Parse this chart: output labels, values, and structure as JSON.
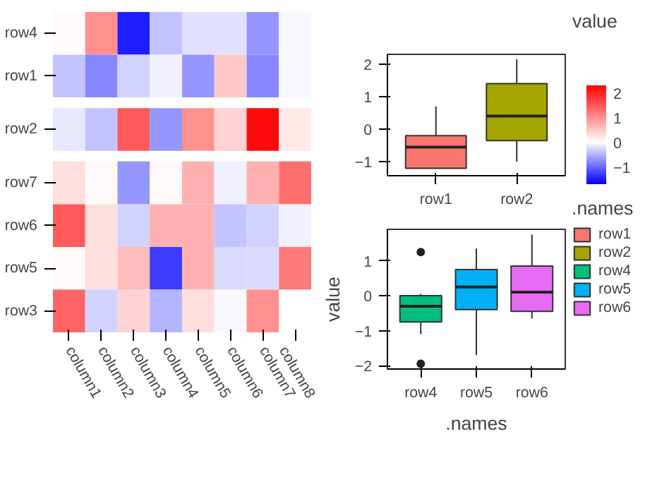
{
  "chart_data": [
    {
      "type": "heatmap",
      "categories": [
        "column1",
        "column2",
        "column3",
        "column4",
        "column5",
        "column6",
        "column7",
        "column8"
      ],
      "y_categories": [
        "row4",
        "row1",
        "row2",
        "row7",
        "row6",
        "row5",
        "row3"
      ],
      "cells": [
        [
          0.05,
          1.0,
          -1.5,
          -0.4,
          -0.2,
          -0.2,
          -0.7,
          -0.05
        ],
        [
          -0.4,
          -0.8,
          -0.3,
          -0.1,
          -0.7,
          0.5,
          -0.8,
          -0.05
        ],
        [
          -0.15,
          -0.4,
          1.5,
          -0.7,
          1.0,
          0.4,
          2.2,
          0.2
        ],
        [
          0.3,
          0.05,
          -0.7,
          0.05,
          0.7,
          -0.1,
          0.7,
          1.3
        ],
        [
          1.5,
          0.3,
          -0.3,
          0.7,
          0.7,
          -0.4,
          -0.3,
          -0.1
        ],
        [
          0.05,
          0.3,
          0.6,
          -1.3,
          0.7,
          -0.25,
          -0.25,
          1.2
        ],
        [
          1.4,
          -0.3,
          0.4,
          -0.5,
          0.3,
          -0.05,
          1.0,
          null
        ]
      ],
      "clim": [
        -1.7,
        2.3
      ],
      "cticks": [
        -1,
        0,
        1,
        2
      ],
      "clabel": "value"
    },
    {
      "type": "box",
      "categories": [
        "row1",
        "row2"
      ],
      "ylim": [
        -1.43,
        2.3
      ],
      "yticks": [
        -1,
        0,
        1,
        2
      ],
      "legend": "right",
      "series": [
        {
          "name": "row1",
          "color": "#f8766d",
          "boxes": [
            {
              "low": -1.2,
              "q1": -1.2,
              "median": -0.55,
              "q3": -0.2,
              "high": 0.7
            },
            null
          ]
        },
        {
          "name": "row2",
          "color": "#a3a500",
          "boxes": [
            null,
            {
              "low": -1.0,
              "q1": -0.35,
              "median": 0.4,
              "q3": 1.4,
              "high": 2.15
            }
          ]
        }
      ]
    },
    {
      "type": "box",
      "categories": [
        "row4",
        "row5",
        "row6"
      ],
      "ylim": [
        -2.1,
        1.9
      ],
      "yticks": [
        -2,
        -1,
        0,
        1
      ],
      "xlabel": ".names",
      "ylabel": "value",
      "legend": "right",
      "legend_title": ".names",
      "series": [
        {
          "name": "row4",
          "color": "#00bf7d",
          "boxes": [
            {
              "low": -1.1,
              "q1": -0.75,
              "median": -0.3,
              "q3": 0.0,
              "high": 0.05,
              "outliers": [
                1.25,
                -1.95
              ]
            },
            null,
            null
          ]
        },
        {
          "name": "row5",
          "color": "#00b0f6",
          "boxes": [
            null,
            {
              "low": -1.7,
              "q1": -0.4,
              "median": 0.25,
              "q3": 0.75,
              "high": 1.35
            },
            null
          ]
        },
        {
          "name": "row6",
          "color": "#e76bf3",
          "boxes": [
            null,
            null,
            {
              "low": -0.65,
              "q1": -0.45,
              "median": 0.1,
              "q3": 0.85,
              "high": 1.75
            }
          ]
        }
      ]
    }
  ]
}
